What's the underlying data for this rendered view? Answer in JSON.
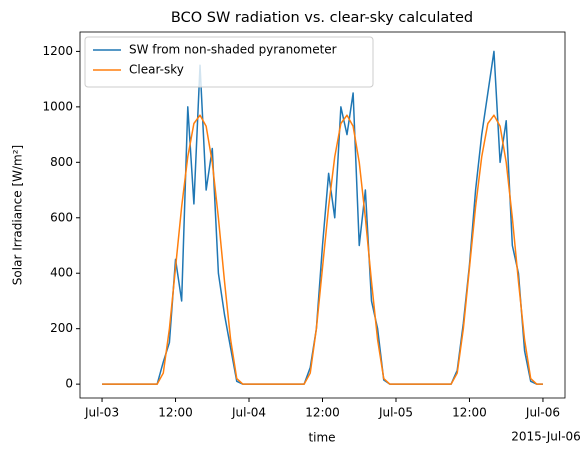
{
  "chart_data": {
    "type": "line",
    "title": "BCO SW radiation vs. clear-sky calculated",
    "xlabel": "time",
    "ylabel": "Solar Irradiance [W/m²]",
    "x_offset_text": "2015-Jul-06",
    "x": [
      "2015-07-03T00:00",
      "2015-07-03T01:00",
      "2015-07-03T02:00",
      "2015-07-03T03:00",
      "2015-07-03T04:00",
      "2015-07-03T05:00",
      "2015-07-03T06:00",
      "2015-07-03T07:00",
      "2015-07-03T08:00",
      "2015-07-03T09:00",
      "2015-07-03T10:00",
      "2015-07-03T11:00",
      "2015-07-03T12:00",
      "2015-07-03T13:00",
      "2015-07-03T14:00",
      "2015-07-03T15:00",
      "2015-07-03T16:00",
      "2015-07-03T17:00",
      "2015-07-03T18:00",
      "2015-07-03T19:00",
      "2015-07-03T20:00",
      "2015-07-03T21:00",
      "2015-07-03T22:00",
      "2015-07-03T23:00",
      "2015-07-04T00:00",
      "2015-07-04T01:00",
      "2015-07-04T02:00",
      "2015-07-04T03:00",
      "2015-07-04T04:00",
      "2015-07-04T05:00",
      "2015-07-04T06:00",
      "2015-07-04T07:00",
      "2015-07-04T08:00",
      "2015-07-04T09:00",
      "2015-07-04T10:00",
      "2015-07-04T11:00",
      "2015-07-04T12:00",
      "2015-07-04T13:00",
      "2015-07-04T14:00",
      "2015-07-04T15:00",
      "2015-07-04T16:00",
      "2015-07-04T17:00",
      "2015-07-04T18:00",
      "2015-07-04T19:00",
      "2015-07-04T20:00",
      "2015-07-04T21:00",
      "2015-07-04T22:00",
      "2015-07-04T23:00",
      "2015-07-05T00:00",
      "2015-07-05T01:00",
      "2015-07-05T02:00",
      "2015-07-05T03:00",
      "2015-07-05T04:00",
      "2015-07-05T05:00",
      "2015-07-05T06:00",
      "2015-07-05T07:00",
      "2015-07-05T08:00",
      "2015-07-05T09:00",
      "2015-07-05T10:00",
      "2015-07-05T11:00",
      "2015-07-05T12:00",
      "2015-07-05T13:00",
      "2015-07-05T14:00",
      "2015-07-05T15:00",
      "2015-07-05T16:00",
      "2015-07-05T17:00",
      "2015-07-05T18:00",
      "2015-07-05T19:00",
      "2015-07-05T20:00",
      "2015-07-05T21:00",
      "2015-07-05T22:00",
      "2015-07-05T23:00",
      "2015-07-06T00:00"
    ],
    "series": [
      {
        "name": "SW from non-shaded pyranometer",
        "color": "#1f77b4",
        "values": [
          0,
          0,
          0,
          0,
          0,
          0,
          0,
          0,
          0,
          0,
          80,
          150,
          450,
          300,
          1000,
          650,
          1150,
          700,
          850,
          400,
          250,
          130,
          10,
          0,
          0,
          0,
          0,
          0,
          0,
          0,
          0,
          0,
          0,
          0,
          60,
          200,
          500,
          760,
          600,
          1000,
          900,
          1050,
          500,
          700,
          300,
          200,
          15,
          0,
          0,
          0,
          0,
          0,
          0,
          0,
          0,
          0,
          0,
          0,
          50,
          220,
          430,
          700,
          900,
          1050,
          1200,
          800,
          950,
          500,
          400,
          120,
          10,
          0,
          0
        ]
      },
      {
        "name": "Clear-sky",
        "color": "#ff7f0e",
        "values": [
          0,
          0,
          0,
          0,
          0,
          0,
          0,
          0,
          0,
          0,
          40,
          200,
          420,
          640,
          820,
          940,
          970,
          930,
          800,
          600,
          370,
          160,
          20,
          0,
          0,
          0,
          0,
          0,
          0,
          0,
          0,
          0,
          0,
          0,
          40,
          200,
          420,
          640,
          820,
          940,
          970,
          930,
          800,
          600,
          370,
          160,
          20,
          0,
          0,
          0,
          0,
          0,
          0,
          0,
          0,
          0,
          0,
          0,
          40,
          200,
          420,
          640,
          820,
          940,
          970,
          930,
          800,
          600,
          370,
          160,
          20,
          0,
          0
        ]
      }
    ],
    "xlim": [
      "2015-07-02T20:24",
      "2015-07-06T03:36"
    ],
    "xticks": [
      {
        "value": "2015-07-03T00:00",
        "label": "Jul-03"
      },
      {
        "value": "2015-07-03T12:00",
        "label": "12:00"
      },
      {
        "value": "2015-07-04T00:00",
        "label": "Jul-04"
      },
      {
        "value": "2015-07-04T12:00",
        "label": "12:00"
      },
      {
        "value": "2015-07-05T00:00",
        "label": "Jul-05"
      },
      {
        "value": "2015-07-05T12:00",
        "label": "12:00"
      },
      {
        "value": "2015-07-06T00:00",
        "label": "Jul-06"
      }
    ],
    "ylim": [
      -50,
      1270
    ],
    "yticks": [
      0,
      200,
      400,
      600,
      800,
      1000,
      1200
    ],
    "legend": "upper left"
  }
}
